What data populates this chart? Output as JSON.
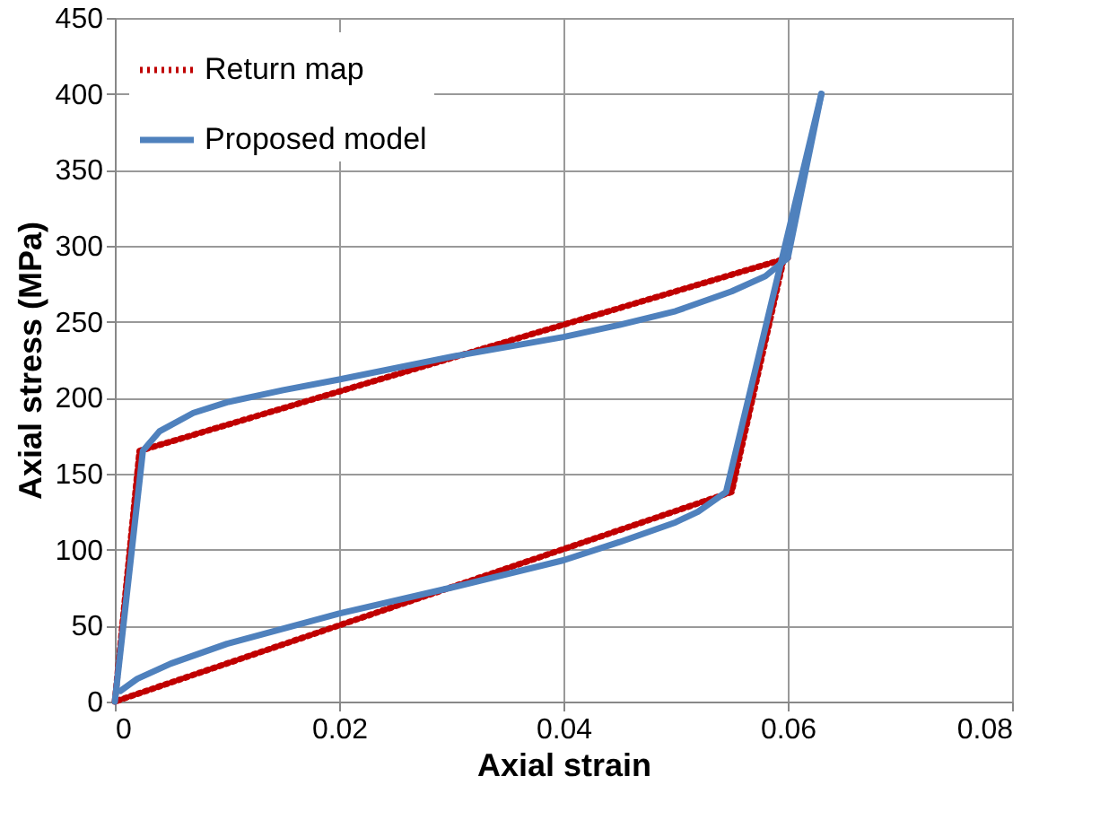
{
  "chart_data": {
    "type": "line",
    "xlabel": "Axial strain",
    "ylabel": "Axial stress (MPa)",
    "xlim": [
      0,
      0.08
    ],
    "xticks": [
      0,
      0.02,
      0.04,
      0.06,
      0.08
    ],
    "ylim": [
      0,
      450
    ],
    "yticks": [
      0,
      50,
      100,
      150,
      200,
      250,
      300,
      350,
      400,
      450
    ],
    "grid": true,
    "legend": "top left",
    "series": [
      {
        "name": "Return map",
        "color": "#c00000",
        "line_style": "dotted",
        "x": [
          0,
          0.0022,
          0.06
        ],
        "values": [
          0,
          165,
          292
        ]
      },
      {
        "color": "#c00000",
        "line_style": "dotted",
        "x": [
          0.0596,
          0.055,
          0
        ],
        "values": [
          290,
          138,
          0
        ]
      },
      {
        "name": "Proposed model",
        "color": "#4f81bd",
        "line_style": "solid",
        "x": [
          0,
          0.0025,
          0.004,
          0.007,
          0.01,
          0.015,
          0.02,
          0.03,
          0.04,
          0.045,
          0.05,
          0.055,
          0.058,
          0.06,
          0.063
        ],
        "values": [
          0,
          165,
          178,
          190,
          197,
          205,
          212,
          227,
          240,
          248,
          257,
          270,
          280,
          292,
          400
        ]
      },
      {
        "color": "#4f81bd",
        "line_style": "solid",
        "x": [
          0.063,
          0.0545,
          0.052,
          0.05,
          0.045,
          0.04,
          0.03,
          0.02,
          0.01,
          0.005,
          0.002,
          0.0005
        ],
        "values": [
          400,
          138,
          125,
          118,
          105,
          93,
          75,
          58,
          38,
          25,
          15,
          7
        ]
      }
    ]
  }
}
